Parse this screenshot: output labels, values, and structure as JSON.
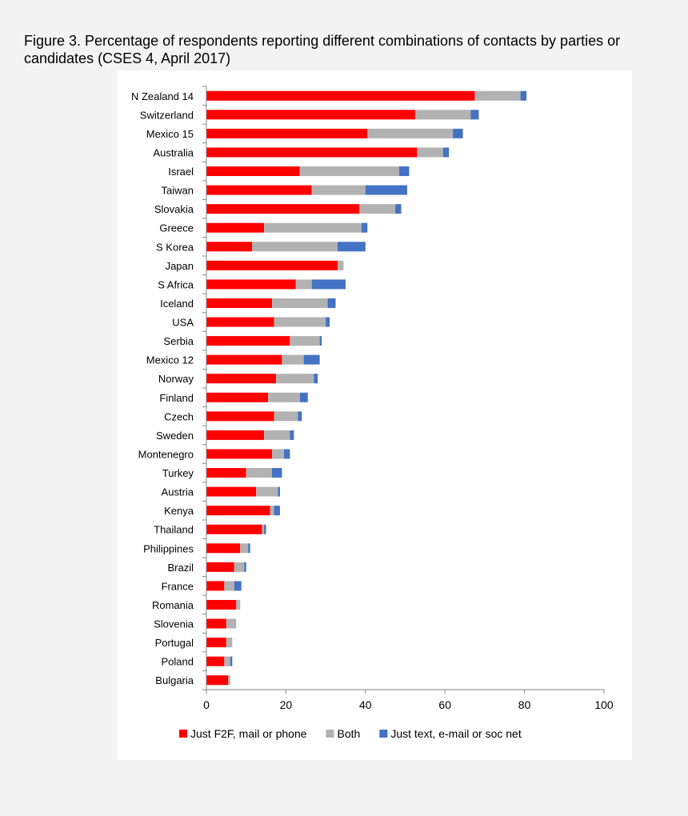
{
  "figure": {
    "title": "Figure 3. Percentage of respondents reporting different combinations of contacts by parties or candidates (CSES 4, April 2017)"
  },
  "chart_data": {
    "type": "bar",
    "orientation": "horizontal",
    "stacked": true,
    "title": "Figure 3. Percentage of respondents reporting different combinations of contacts by parties or candidates (CSES 4, April 2017)",
    "xlabel": "",
    "ylabel": "",
    "xlim": [
      0,
      100
    ],
    "xticks": [
      0,
      20,
      40,
      60,
      80,
      100
    ],
    "grid": false,
    "legend_position": "bottom",
    "categories": [
      "N Zealand 14",
      "Switzerland",
      "Mexico 15",
      "Australia",
      "Israel",
      "Taiwan",
      "Slovakia",
      "Greece",
      "S Korea",
      "Japan",
      "S Africa",
      "Iceland",
      "USA",
      "Serbia",
      "Mexico 12",
      "Norway",
      "Finland",
      "Czech",
      "Sweden",
      "Montenegro",
      "Turkey",
      "Austria",
      "Kenya",
      "Thailand",
      "Philippines",
      "Brazil",
      "France",
      "Romania",
      "Slovenia",
      "Portugal",
      "Poland",
      "Bulgaria"
    ],
    "series": [
      {
        "name": "Just F2F, mail or phone",
        "color": "#ff0000",
        "values": [
          67.5,
          52.5,
          40.5,
          53,
          23.5,
          26.5,
          38.5,
          14.5,
          11.5,
          33,
          22.5,
          16.5,
          17,
          21,
          19,
          17.5,
          15.5,
          17,
          14.5,
          16.5,
          10,
          12.5,
          16,
          14,
          8.5,
          7,
          4.5,
          7.5,
          5,
          5,
          4.5,
          5.5
        ]
      },
      {
        "name": "Both",
        "color": "#b2b2b2",
        "values": [
          11.5,
          14,
          21.5,
          6.5,
          25,
          13.5,
          9,
          24.5,
          21.5,
          1.5,
          4,
          14,
          13,
          7.5,
          5.5,
          9.5,
          8,
          6,
          6.5,
          3,
          6.5,
          5.5,
          1,
          0.5,
          2,
          2.5,
          2.5,
          1,
          2.5,
          1.5,
          1.5,
          0.5
        ]
      },
      {
        "name": "Just text, e-mail or soc net",
        "color": "#4472c4",
        "values": [
          1.5,
          2,
          2.5,
          1.5,
          2.5,
          10.5,
          1.5,
          1.5,
          7,
          0,
          8.5,
          2,
          1,
          0.5,
          4,
          1,
          2,
          1,
          1,
          1.5,
          2.5,
          0.5,
          1.5,
          0.5,
          0.5,
          0.5,
          1.8,
          0,
          0,
          0,
          0.5,
          0
        ]
      }
    ]
  }
}
